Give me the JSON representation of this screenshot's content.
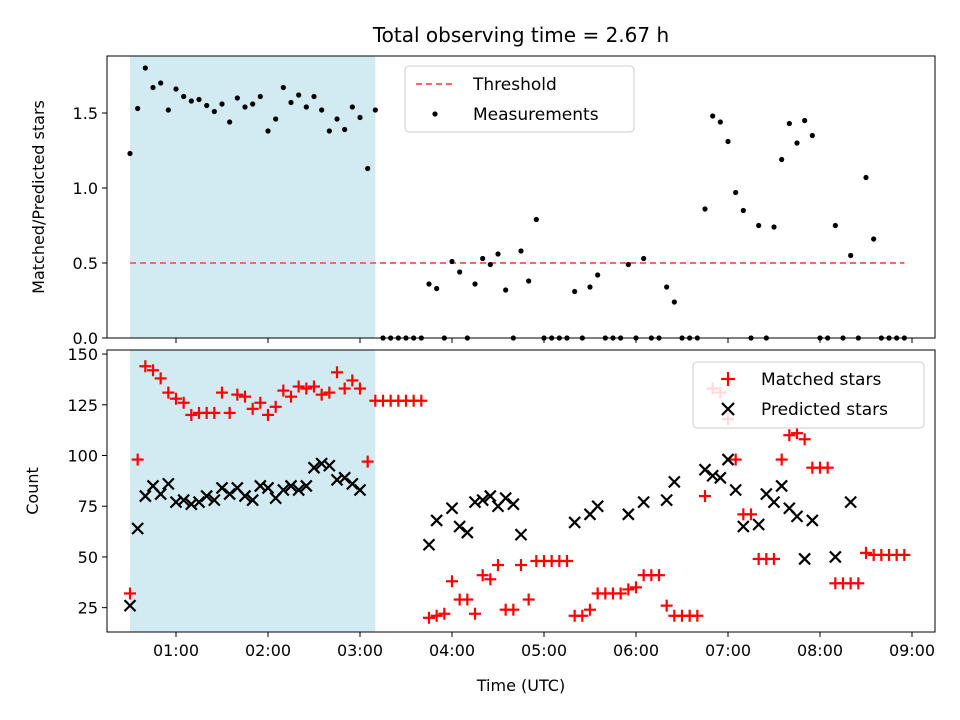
{
  "chart_data": [
    {
      "type": "scatter",
      "title": "Total observing time = 2.67 h",
      "xlabel": "",
      "ylabel": "Matched/Predicted stars",
      "xlim": [
        "00:15",
        "09:15"
      ],
      "ylim": [
        0,
        1.88
      ],
      "xticks": [
        "01:00",
        "02:00",
        "03:00",
        "04:00",
        "05:00",
        "06:00",
        "07:00",
        "08:00",
        "09:00"
      ],
      "yticks": [
        "0.0",
        "0.5",
        "1.0",
        "1.5"
      ],
      "shaded_region": {
        "x": [
          "00:30",
          "03:10"
        ],
        "color": "#add8e6"
      },
      "legend": {
        "position": "top-center",
        "entries": [
          "Threshold",
          "Measurements"
        ]
      },
      "threshold": {
        "name": "Threshold",
        "y": 0.5,
        "x": [
          "00:30",
          "08:55"
        ],
        "color": "#ff6666"
      },
      "series": [
        {
          "name": "Measurements",
          "color": "#000000",
          "x": [
            "00:30",
            "00:35",
            "00:40",
            "00:45",
            "00:50",
            "00:55",
            "01:00",
            "01:05",
            "01:10",
            "01:15",
            "01:20",
            "01:25",
            "01:30",
            "01:35",
            "01:40",
            "01:45",
            "01:50",
            "01:55",
            "02:00",
            "02:05",
            "02:10",
            "02:15",
            "02:20",
            "02:25",
            "02:30",
            "02:35",
            "02:40",
            "02:45",
            "02:50",
            "02:55",
            "03:00",
            "03:05",
            "03:10",
            "03:15",
            "03:20",
            "03:25",
            "03:30",
            "03:35",
            "03:40",
            "03:45",
            "03:50",
            "03:55",
            "04:00",
            "04:05",
            "04:10",
            "04:15",
            "04:20",
            "04:25",
            "04:30",
            "04:35",
            "04:40",
            "04:45",
            "04:50",
            "04:55",
            "05:00",
            "05:05",
            "05:10",
            "05:15",
            "05:20",
            "05:25",
            "05:30",
            "05:35",
            "05:40",
            "05:45",
            "05:50",
            "05:55",
            "06:00",
            "06:05",
            "06:10",
            "06:15",
            "06:20",
            "06:25",
            "06:30",
            "06:35",
            "06:40",
            "06:45",
            "06:50",
            "06:55",
            "07:00",
            "07:05",
            "07:10",
            "07:15",
            "07:20",
            "07:25",
            "07:30",
            "07:35",
            "07:40",
            "07:45",
            "07:50",
            "07:55",
            "08:00",
            "08:05",
            "08:10",
            "08:15",
            "08:20",
            "08:25",
            "08:30",
            "08:35",
            "08:40",
            "08:45",
            "08:50",
            "08:55"
          ],
          "y": [
            1.23,
            1.53,
            1.8,
            1.67,
            1.7,
            1.52,
            1.66,
            1.61,
            1.58,
            1.59,
            1.55,
            1.51,
            1.56,
            1.44,
            1.6,
            1.54,
            1.56,
            1.61,
            1.38,
            1.46,
            1.67,
            1.57,
            1.62,
            1.54,
            1.61,
            1.52,
            1.38,
            1.46,
            1.39,
            1.54,
            1.47,
            1.13,
            1.52,
            0,
            0,
            0,
            0,
            0,
            0,
            0.36,
            0.33,
            0,
            0.51,
            0.44,
            0,
            0.36,
            0.53,
            0.49,
            0.56,
            0.32,
            0,
            0.58,
            0.38,
            0.79,
            0,
            0,
            0,
            0,
            0.31,
            0,
            0.34,
            0.42,
            0,
            0,
            0,
            0.49,
            0,
            0.53,
            0,
            0,
            0.34,
            0.24,
            0,
            0,
            0,
            0.86,
            1.48,
            1.44,
            1.31,
            0.97,
            0.85,
            0,
            0.75,
            0,
            0.74,
            1.19,
            1.43,
            1.3,
            1.45,
            1.35,
            0,
            0,
            0.75,
            0,
            0.55,
            0,
            1.07,
            0.66,
            0,
            0,
            0,
            0
          ]
        }
      ]
    },
    {
      "type": "scatter",
      "title": "",
      "xlabel": "Time (UTC)",
      "ylabel": "Count",
      "xlim": [
        "00:15",
        "09:15"
      ],
      "ylim": [
        13,
        152
      ],
      "xticks": [
        "01:00",
        "02:00",
        "03:00",
        "04:00",
        "05:00",
        "06:00",
        "07:00",
        "08:00",
        "09:00"
      ],
      "yticks": [
        "25",
        "50",
        "75",
        "100",
        "125",
        "150"
      ],
      "shaded_region": {
        "x": [
          "00:30",
          "03:10"
        ],
        "color": "#add8e6"
      },
      "legend": {
        "position": "top-right",
        "entries": [
          "Matched stars",
          "Predicted stars"
        ]
      },
      "series": [
        {
          "name": "Matched stars",
          "marker": "plus",
          "color": "#ff0000",
          "x": [
            "00:30",
            "00:35",
            "00:40",
            "00:45",
            "00:50",
            "00:55",
            "01:00",
            "01:05",
            "01:10",
            "01:15",
            "01:20",
            "01:25",
            "01:30",
            "01:35",
            "01:40",
            "01:45",
            "01:50",
            "01:55",
            "02:00",
            "02:05",
            "02:10",
            "02:15",
            "02:20",
            "02:25",
            "02:30",
            "02:35",
            "02:40",
            "02:45",
            "02:50",
            "02:55",
            "03:00",
            "03:05",
            "03:10",
            "03:15",
            "03:20",
            "03:25",
            "03:30",
            "03:35",
            "03:40",
            "03:45",
            "03:50",
            "03:55",
            "04:00",
            "04:05",
            "04:10",
            "04:15",
            "04:20",
            "04:25",
            "04:30",
            "04:35",
            "04:40",
            "04:45",
            "04:50",
            "04:55",
            "05:00",
            "05:05",
            "05:10",
            "05:15",
            "05:20",
            "05:25",
            "05:30",
            "05:35",
            "05:40",
            "05:45",
            "05:50",
            "05:55",
            "06:00",
            "06:05",
            "06:10",
            "06:15",
            "06:20",
            "06:25",
            "06:30",
            "06:35",
            "06:40",
            "06:45",
            "06:50",
            "06:55",
            "07:00",
            "07:05",
            "07:10",
            "07:15",
            "07:20",
            "07:25",
            "07:30",
            "07:35",
            "07:40",
            "07:45",
            "07:50",
            "07:55",
            "08:00",
            "08:05",
            "08:10",
            "08:15",
            "08:20",
            "08:25",
            "08:30",
            "08:35",
            "08:40",
            "08:45",
            "08:50",
            "08:55"
          ],
          "y": [
            32,
            98,
            144,
            142,
            138,
            131,
            128,
            126,
            120,
            121,
            121,
            121,
            131,
            121,
            130,
            129,
            123,
            126,
            120,
            124,
            132,
            129,
            134,
            133,
            134,
            130,
            131,
            141,
            133,
            137,
            133,
            97,
            127,
            127,
            127,
            127,
            127,
            127,
            127,
            20,
            21,
            22,
            38,
            29,
            29,
            22,
            41,
            39,
            46,
            24,
            24,
            46,
            29,
            48,
            48,
            48,
            48,
            48,
            21,
            21,
            24,
            32,
            32,
            32,
            32,
            34,
            35,
            41,
            41,
            41,
            26,
            21,
            21,
            21,
            21,
            80,
            133,
            131,
            118,
            98,
            71,
            71,
            49,
            49,
            49,
            98,
            110,
            111,
            108,
            94,
            94,
            94,
            37,
            37,
            37,
            37,
            52,
            51,
            51,
            51,
            51,
            51
          ]
        },
        {
          "name": "Predicted stars",
          "marker": "x",
          "color": "#000000",
          "x": [
            "00:30",
            "00:35",
            "00:40",
            "00:45",
            "00:50",
            "00:55",
            "01:00",
            "01:05",
            "01:10",
            "01:15",
            "01:20",
            "01:25",
            "01:30",
            "01:35",
            "01:40",
            "01:45",
            "01:50",
            "01:55",
            "02:00",
            "02:05",
            "02:10",
            "02:15",
            "02:20",
            "02:25",
            "02:30",
            "02:35",
            "02:40",
            "02:45",
            "02:50",
            "02:55",
            "03:00",
            "03:05",
            "03:10",
            "03:45",
            "03:50",
            "03:55",
            "04:00",
            "04:05",
            "04:10",
            "04:15",
            "04:20",
            "04:25",
            "04:30",
            "04:35",
            "04:40",
            "04:45",
            "04:50",
            "04:55",
            "05:20",
            "05:30",
            "05:35",
            "05:55",
            "06:05",
            "06:20",
            "06:25",
            "06:45",
            "06:50",
            "06:55",
            "07:00",
            "07:05",
            "07:10",
            "07:15",
            "07:20",
            "07:25",
            "07:30",
            "07:35",
            "07:40",
            "07:45",
            "07:50",
            "07:55",
            "08:10",
            "08:20",
            "08:30",
            "08:35"
          ],
          "y": [
            26,
            64,
            80,
            85,
            81,
            86,
            77,
            78,
            76,
            77,
            80,
            78,
            84,
            81,
            84,
            80,
            78,
            85,
            84,
            79,
            83,
            85,
            83,
            85,
            94,
            96,
            95,
            88,
            89,
            86,
            83,
            null,
            null,
            56,
            68,
            null,
            74,
            65,
            62,
            77,
            78,
            80,
            75,
            79,
            76,
            61,
            null,
            null,
            67,
            71,
            75,
            71,
            77,
            78,
            87,
            93,
            90,
            89,
            98,
            83,
            65,
            null,
            66,
            81,
            77,
            85,
            74,
            70,
            49,
            68,
            50,
            77,
            null,
            null
          ]
        }
      ]
    }
  ]
}
